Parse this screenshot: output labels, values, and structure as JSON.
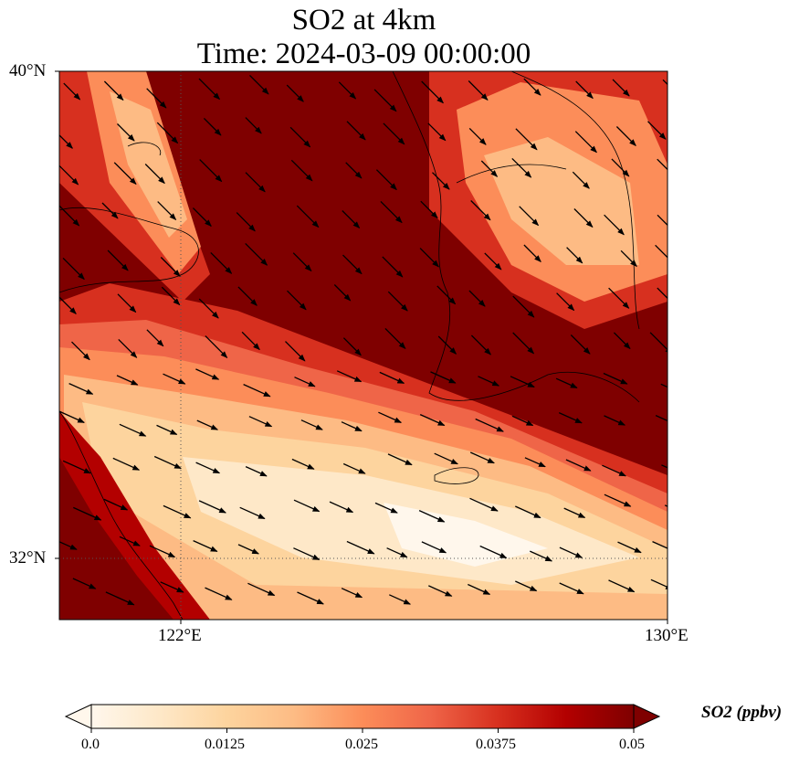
{
  "title": {
    "line1": "SO2 at 4km",
    "line2": "Time: 2024-03-09 00:00:00"
  },
  "axes": {
    "lat_ticks": [
      "40°N",
      "32°N"
    ],
    "lon_ticks": [
      "122°E",
      "130°E"
    ],
    "lat_range": [
      31,
      40
    ],
    "lon_range": [
      120,
      130
    ],
    "gridlines": "dotted at 122°E and 32°N"
  },
  "colorbar": {
    "label": "SO2 (ppbv)",
    "ticks": [
      "0.0",
      "0.0125",
      "0.025",
      "0.0375",
      "0.05"
    ],
    "range": [
      0.0,
      0.05
    ],
    "extend": "both",
    "colormap": "OrRd",
    "colors": [
      "#fff7ec",
      "#fee8c8",
      "#fdd49e",
      "#fdbb84",
      "#fc8d59",
      "#ef6548",
      "#d7301f",
      "#b30000",
      "#7f0000"
    ]
  },
  "map": {
    "field": "SO2 mixing ratio",
    "wind_vectors": "black arrows, predominantly toward the southeast",
    "features": "coastlines of eastern China, Korean Peninsula, Jeju Island, Yellow Sea"
  }
}
